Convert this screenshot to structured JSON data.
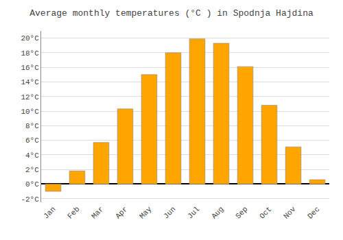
{
  "chart_data": {
    "type": "bar",
    "title": "Average monthly temperatures (°C ) in Spodnja Hajdina",
    "categories": [
      "Jan",
      "Feb",
      "Mar",
      "Apr",
      "May",
      "Jun",
      "Jul",
      "Aug",
      "Sep",
      "Oct",
      "Nov",
      "Dec"
    ],
    "values": [
      -1.0,
      1.8,
      5.7,
      10.3,
      15.0,
      18.0,
      19.9,
      19.3,
      16.1,
      10.8,
      5.1,
      0.6
    ],
    "color": "#FFA500",
    "ylim": [
      -2.5,
      21.0
    ],
    "yticks": [
      {
        "value": -2,
        "label": "-2°C"
      },
      {
        "value": 0,
        "label": "0°C"
      },
      {
        "value": 2,
        "label": "2°C"
      },
      {
        "value": 4,
        "label": "4°C"
      },
      {
        "value": 6,
        "label": "6°C"
      },
      {
        "value": 8,
        "label": "8°C"
      },
      {
        "value": 10,
        "label": "10°C"
      },
      {
        "value": 12,
        "label": "12°C"
      },
      {
        "value": 14,
        "label": "14°C"
      },
      {
        "value": 16,
        "label": "16°C"
      },
      {
        "value": 18,
        "label": "18°C"
      },
      {
        "value": 20,
        "label": "20°C"
      }
    ],
    "grid": true
  }
}
